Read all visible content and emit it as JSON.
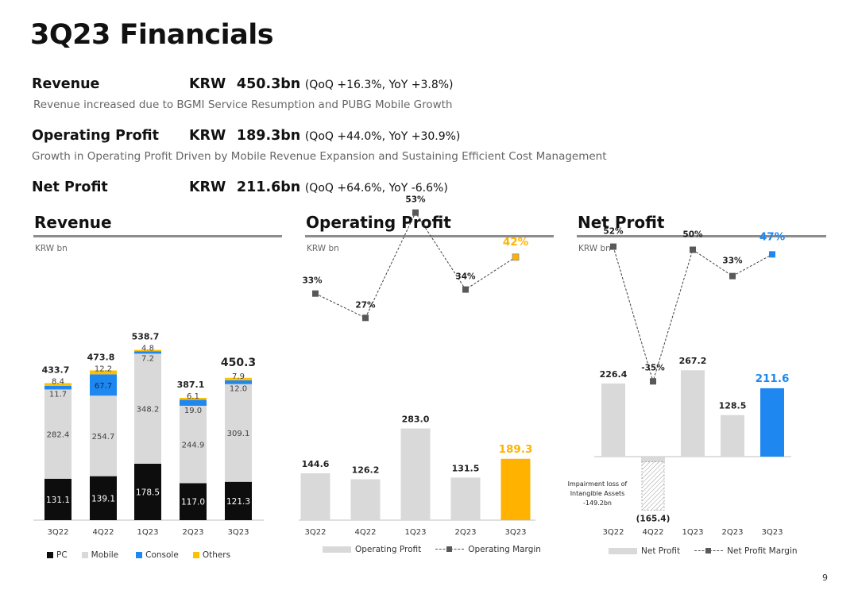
{
  "title": "3Q23 Financials",
  "kpis": {
    "revenue": {
      "label": "Revenue",
      "currency": "KRW",
      "amount": "450.3bn",
      "change": "(QoQ +16.3%, YoY +3.8%)",
      "description": "Revenue increased due to BGMI Service Resumption and PUBG Mobile Growth"
    },
    "op": {
      "label": "Operating Profit",
      "currency": "KRW",
      "amount": "189.3bn",
      "change": "(QoQ +44.0%, YoY +30.9%)",
      "description": "Growth in Operating Profit Driven by Mobile Revenue Expansion and Sustaining Efficient Cost Management"
    },
    "np": {
      "label": "Net Profit",
      "currency": "KRW",
      "amount": "211.6bn",
      "change": "(QoQ +64.6%, YoY -6.6%)"
    }
  },
  "sections": {
    "revenue": {
      "title": "Revenue",
      "unit": "KRW bn"
    },
    "op": {
      "title": "Operating Profit",
      "unit": "KRW bn"
    },
    "np": {
      "title": "Net Profit",
      "unit": "KRW bn"
    }
  },
  "legends": {
    "revenue": [
      "PC",
      "Mobile",
      "Console",
      "Others"
    ],
    "op": {
      "bar": "Operating Profit",
      "line": "Operating Margin"
    },
    "np": {
      "bar": "Net Profit",
      "line": "Net Profit Margin"
    }
  },
  "colors": {
    "pc": "#0d0d0d",
    "mobile": "#d9d9d9",
    "console": "#1e88f0",
    "others": "#ffc000",
    "bar": "#d9d9d9",
    "highlight_op": "#ffb300",
    "highlight_np": "#1e88f0",
    "marker": "#595959"
  },
  "chart_data": [
    {
      "type": "bar",
      "stacked": true,
      "title": "Revenue",
      "unit": "KRW bn",
      "categories": [
        "3Q22",
        "4Q22",
        "1Q23",
        "2Q23",
        "3Q23"
      ],
      "series": [
        {
          "name": "PC",
          "values": [
            131.1,
            139.1,
            178.5,
            117.0,
            121.3
          ],
          "labels": [
            "131.1",
            "139.1",
            "178.5",
            "117.0",
            "121.3"
          ]
        },
        {
          "name": "Mobile",
          "values": [
            282.4,
            254.7,
            348.2,
            244.9,
            309.1
          ],
          "labels": [
            "282.4",
            "254.7",
            "348.2",
            "244.9",
            "309.1"
          ]
        },
        {
          "name": "Console",
          "values": [
            11.7,
            67.7,
            7.2,
            19.0,
            12.0
          ],
          "labels": [
            "11.7",
            "67.7",
            "7.2",
            "19.0",
            "12.0"
          ]
        },
        {
          "name": "Others",
          "values": [
            8.4,
            12.2,
            4.8,
            6.1,
            7.9
          ],
          "labels": [
            "8.4",
            "12.2",
            "4.8",
            "6.1",
            "7.9"
          ]
        }
      ],
      "totals": [
        "433.7",
        "473.8",
        "538.7",
        "387.1",
        "450.3"
      ]
    },
    {
      "type": "bar",
      "title": "Operating Profit",
      "unit": "KRW bn",
      "categories": [
        "3Q22",
        "4Q22",
        "1Q23",
        "2Q23",
        "3Q23"
      ],
      "series": [
        {
          "name": "Operating Profit",
          "values": [
            144.6,
            126.2,
            283.0,
            131.5,
            189.3
          ],
          "labels": [
            "144.6",
            "126.2",
            "283.0",
            "131.5",
            "189.3"
          ]
        },
        {
          "name": "Operating Margin",
          "type": "line",
          "values": [
            33,
            27,
            53,
            34,
            42
          ],
          "labels": [
            "33%",
            "27%",
            "53%",
            "34%",
            "42%"
          ]
        }
      ],
      "highlight_index": 4
    },
    {
      "type": "bar",
      "title": "Net Profit",
      "unit": "KRW bn",
      "categories": [
        "3Q22",
        "4Q22",
        "1Q23",
        "2Q23",
        "3Q23"
      ],
      "series": [
        {
          "name": "Net Profit",
          "values": [
            226.4,
            -165.4,
            267.2,
            128.5,
            211.6
          ],
          "labels": [
            "226.4",
            "(165.4)",
            "267.2",
            "128.5",
            "211.6"
          ]
        },
        {
          "name": "Net Profit Margin",
          "type": "line",
          "values": [
            52,
            -35,
            50,
            33,
            47
          ],
          "labels": [
            "52%",
            "-35%",
            "50%",
            "33%",
            "47%"
          ]
        }
      ],
      "highlight_index": 4,
      "annotation": {
        "category": "4Q22",
        "value": -149.2,
        "lines": [
          "Impairment loss of",
          "Intangible Assets",
          "-149.2bn"
        ]
      }
    }
  ],
  "page_number": "9"
}
